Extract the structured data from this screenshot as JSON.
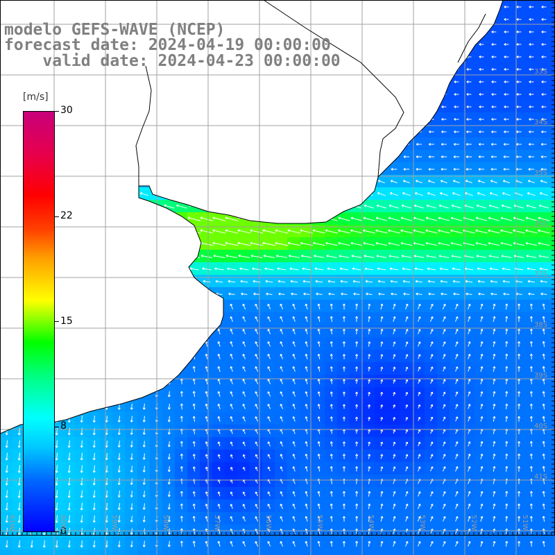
{
  "header": {
    "line1": "modelo GEFS-WAVE (NCEP)",
    "line2": "forecast date: 2024-04-19 00:00:00",
    "line3": "    valid date: 2024-04-23 00:00:00"
  },
  "colorbar": {
    "units": "[m/s]",
    "ticks": [
      "30",
      "22",
      "15",
      "8",
      "0"
    ],
    "min": 0,
    "max": 30
  },
  "axes": {
    "lon_labels": [
      "61W",
      "60W",
      "59W",
      "58W",
      "57W",
      "56W",
      "55W",
      "54W",
      "53W",
      "52W",
      "51W"
    ],
    "lat_labels": [
      "33S",
      "34S",
      "35S",
      "36S",
      "37S",
      "38S",
      "39S",
      "40S",
      "41S"
    ]
  },
  "colors": {
    "land": "#ffffff",
    "grid": "#a0a0a0",
    "coast": "#000000",
    "arrow": "#ffffff",
    "title": "#808080"
  }
}
